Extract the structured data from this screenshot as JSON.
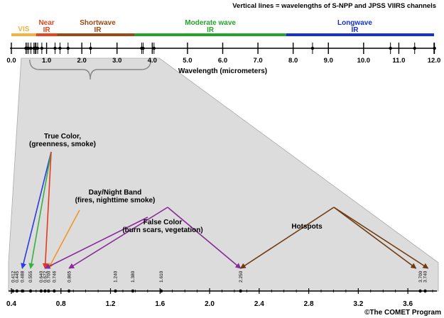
{
  "header_note": "Vertical lines = wavelengths of S-NPP and JPSS VIIRS channels",
  "credit": "©The COMET Program",
  "colors": {
    "vis": "#f5b041",
    "near_ir": "#e8451e",
    "shortwave_ir": "#9a4a12",
    "moderate_ir": "#22a52a",
    "longwave_ir": "#1430d8",
    "true_color_blue": "#2a3de0",
    "true_color_green": "#38b040",
    "true_color_red": "#e23a1e",
    "day_night": "#f0962a",
    "false_color": "#8a2a9a",
    "hotspots": "#6e3c12",
    "zoom_fill": "#dcdcdc"
  },
  "chart_data": [
    {
      "type": "number-line",
      "xlabel": "Wavelength (micrometers)",
      "xlim": [
        0.0,
        12.0
      ],
      "ticks": [
        {
          "v": 0,
          "label": "0.0"
        },
        {
          "v": 1,
          "label": "1.0"
        },
        {
          "v": 2,
          "label": "2.0"
        },
        {
          "v": 3,
          "label": "3.0"
        },
        {
          "v": 4,
          "label": "4.0"
        },
        {
          "v": 5,
          "label": "5.0"
        },
        {
          "v": 6,
          "label": "6.0"
        },
        {
          "v": 7,
          "label": "7.0"
        },
        {
          "v": 8,
          "label": "8.0"
        },
        {
          "v": 9,
          "label": "9.0"
        },
        {
          "v": 10,
          "label": "10.0"
        },
        {
          "v": 11,
          "label": "11.0"
        },
        {
          "v": 12,
          "label": "12.0"
        }
      ],
      "bands": [
        {
          "name": "VIS",
          "start": 0.0,
          "end": 0.7,
          "color": "#f5b041"
        },
        {
          "name": "Near IR",
          "start": 0.7,
          "end": 1.3,
          "color": "#e8451e"
        },
        {
          "name": "Shortwave IR",
          "start": 1.3,
          "end": 3.5,
          "color": "#9a4a12"
        },
        {
          "name": "Moderate wave IR",
          "start": 3.5,
          "end": 7.8,
          "color": "#22a52a"
        },
        {
          "name": "Longwave IR",
          "start": 7.8,
          "end": 12.0,
          "color": "#1430d8"
        }
      ],
      "band_labels": [
        {
          "lines": [
            "VIS"
          ],
          "x": 0.35,
          "color": "#f5b041"
        },
        {
          "lines": [
            "Near",
            "IR"
          ],
          "x": 1.0,
          "color": "#e8451e"
        },
        {
          "lines": [
            "Shortwave",
            "IR"
          ],
          "x": 2.45,
          "color": "#9a4a12"
        },
        {
          "lines": [
            "Moderate wave",
            "IR"
          ],
          "x": 5.65,
          "color": "#22a52a"
        },
        {
          "lines": [
            "Longwave",
            "IR"
          ],
          "x": 9.75,
          "color": "#1430d8"
        }
      ],
      "channels": [
        0.412,
        0.445,
        0.488,
        0.555,
        0.64,
        0.672,
        0.7,
        0.746,
        0.865,
        1.24,
        1.38,
        1.61,
        2.25,
        3.7,
        3.74,
        4.05,
        8.55,
        10.763,
        11.45,
        12.013
      ],
      "zoom_range": [
        0.4,
        4.0
      ]
    },
    {
      "type": "number-line",
      "xlim": [
        0.4,
        3.8
      ],
      "ticks": [
        {
          "v": 0.4,
          "label": "0.4"
        },
        {
          "v": 0.8,
          "label": "0.8"
        },
        {
          "v": 1.2,
          "label": "1.2"
        },
        {
          "v": 1.6,
          "label": "1.6"
        },
        {
          "v": 2.0,
          "label": "2.0"
        },
        {
          "v": 2.4,
          "label": "2.4"
        },
        {
          "v": 2.8,
          "label": "2.8"
        },
        {
          "v": 3.2,
          "label": "3.2"
        },
        {
          "v": 3.6,
          "label": "3.6"
        }
      ],
      "channels": [
        {
          "v": 0.412,
          "label": "0.412"
        },
        {
          "v": 0.445,
          "label": "0.445"
        },
        {
          "v": 0.488,
          "label": "0.488"
        },
        {
          "v": 0.555,
          "label": "0.555"
        },
        {
          "v": 0.64,
          "label": "0.640"
        },
        {
          "v": 0.672,
          "label": "0.672"
        },
        {
          "v": 0.7,
          "label": "0.700"
        },
        {
          "v": 0.746,
          "label": "0.746"
        },
        {
          "v": 0.865,
          "label": "0.865"
        },
        {
          "v": 1.24,
          "label": "1.240"
        },
        {
          "v": 1.38,
          "label": "1.380"
        },
        {
          "v": 1.61,
          "label": "1.610"
        },
        {
          "v": 2.25,
          "label": "2.250"
        },
        {
          "v": 3.7,
          "label": "3.700"
        },
        {
          "v": 3.74,
          "label": "3.740"
        }
      ],
      "annotations": [
        {
          "name": "true-color",
          "lines": [
            "True Color,",
            "(greenness, smoke)"
          ],
          "arrows": [
            {
              "target": 0.488,
              "color": "#2a3de0"
            },
            {
              "target": 0.555,
              "color": "#38b040"
            },
            {
              "target": 0.672,
              "color": "#e23a1e"
            }
          ]
        },
        {
          "name": "day-night-band",
          "lines": [
            "Day/Night Band",
            "(fires, nighttime smoke)"
          ],
          "arrows": [
            {
              "target": 0.7,
              "color": "#f0962a"
            }
          ]
        },
        {
          "name": "false-color",
          "lines": [
            "False Color",
            "(burn scars, vegetation)"
          ],
          "arrows": [
            {
              "target": 0.672,
              "color": "#8a2a9a"
            },
            {
              "target": 0.865,
              "color": "#8a2a9a"
            },
            {
              "target": 2.25,
              "color": "#8a2a9a"
            }
          ]
        },
        {
          "name": "hotspots",
          "lines": [
            "Hotspots"
          ],
          "arrows": [
            {
              "target": 2.25,
              "color": "#6e3c12"
            },
            {
              "target": 3.7,
              "color": "#6e3c12"
            },
            {
              "target": 3.74,
              "color": "#6e3c12"
            }
          ]
        }
      ]
    }
  ]
}
